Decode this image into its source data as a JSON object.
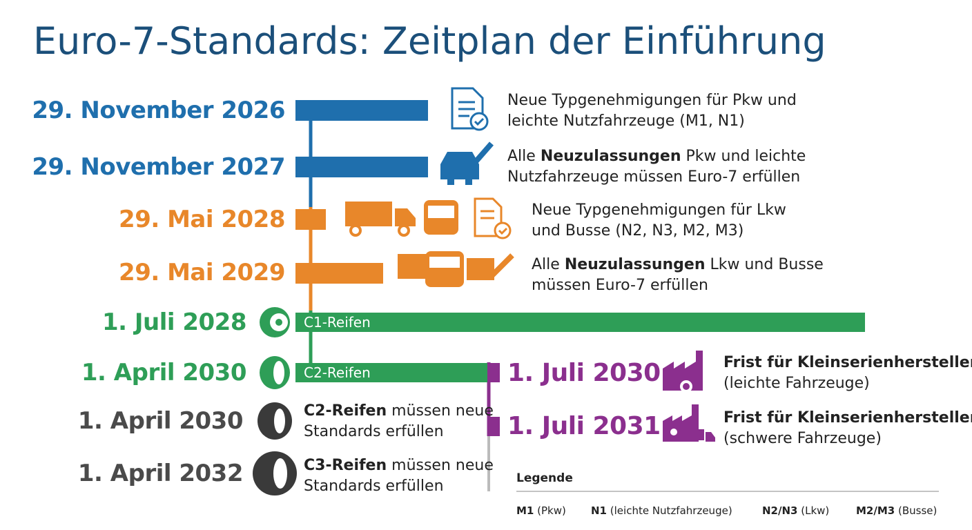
{
  "title": "Euro-7-Standards: Zeitplan der Einführung",
  "timeline": [
    {
      "date": "29. November 2026",
      "color": "#1f6fad",
      "description": [
        [
          {
            "text": "Neue Typgenehmigungen für Pkw und",
            "bold": false
          }
        ],
        [
          {
            "text": "leichte Nutzfahrzeuge (M1, N1)",
            "bold": false
          }
        ]
      ]
    },
    {
      "date": "29. November 2027",
      "color": "#1f6fad",
      "description": [
        [
          {
            "text": "Alle ",
            "bold": false
          },
          {
            "text": "Neuzulassungen",
            "bold": true
          },
          {
            "text": " Pkw und leichte",
            "bold": false
          }
        ],
        [
          {
            "text": "Nutzfahrzeuge müssen Euro-7 erfüllen",
            "bold": false
          }
        ]
      ]
    },
    {
      "date": "29. Mai 2028",
      "color": "#e8872a",
      "description": [
        [
          {
            "text": "Neue Typgenehmigungen für Lkw",
            "bold": false
          }
        ],
        [
          {
            "text": "und Busse (N2, N3, M2, M3)",
            "bold": false
          }
        ]
      ]
    },
    {
      "date": "29. Mai 2029",
      "color": "#e8872a",
      "description": [
        [
          {
            "text": "Alle ",
            "bold": false
          },
          {
            "text": "Neuzulassungen",
            "bold": true
          },
          {
            "text": " Lkw und Busse",
            "bold": false
          }
        ],
        [
          {
            "text": "müssen Euro-7 erfüllen",
            "bold": false
          }
        ]
      ]
    },
    {
      "date": "1. Juli 2028",
      "color": "#2e9e57",
      "bar_label": "C1-Reifen"
    },
    {
      "date": "1. April 2030",
      "color": "#2e9e57",
      "bar_label": "C2-Reifen"
    },
    {
      "date": "1. April 2030",
      "color": "#4a4a4a",
      "description": [
        [
          {
            "text": "C2-Reifen",
            "bold": true
          },
          {
            "text": " müssen neue",
            "bold": false
          }
        ],
        [
          {
            "text": "Standards erfüllen",
            "bold": false
          }
        ]
      ]
    },
    {
      "date": "1. April 2032",
      "color": "#4a4a4a",
      "description": [
        [
          {
            "text": "C3-Reifen",
            "bold": true
          },
          {
            "text": " müssen neue",
            "bold": false
          }
        ],
        [
          {
            "text": "Standards erfüllen",
            "bold": false
          }
        ]
      ]
    }
  ],
  "small_series": [
    {
      "date": "1. Juli 2030",
      "color": "#8b2f8e",
      "description": [
        [
          {
            "text": "Frist für Kleinserienhersteller",
            "bold": true
          }
        ],
        [
          {
            "text": "(leichte Fahrzeuge)",
            "bold": false
          }
        ]
      ]
    },
    {
      "date": "1. Juli 2031",
      "color": "#8b2f8e",
      "description": [
        [
          {
            "text": "Frist für Kleinserienhersteller",
            "bold": true
          }
        ],
        [
          {
            "text": "(schwere Fahrzeuge)",
            "bold": false
          }
        ]
      ]
    }
  ],
  "legend": {
    "title": "Legende",
    "items": [
      {
        "code": "M1",
        "meaning": "(Pkw)"
      },
      {
        "code": "N1",
        "meaning": "(leichte Nutzfahrzeuge)"
      },
      {
        "code": "N2/N3",
        "meaning": "(Lkw)"
      },
      {
        "code": "M2/M3",
        "meaning": "(Busse)"
      }
    ]
  }
}
